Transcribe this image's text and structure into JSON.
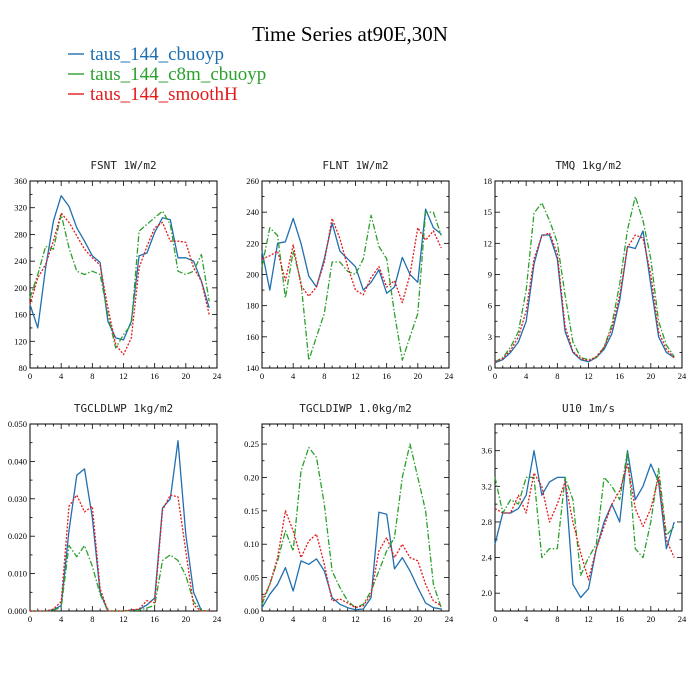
{
  "figure_title": "Time Series at90E,30N",
  "legend": [
    {
      "label": "taus_144_cbuoyp",
      "color": "#1f6fb0",
      "dash": "solid"
    },
    {
      "label": "taus_144_c8m_cbuoyp",
      "color": "#2ca02c",
      "dash": "dashdot"
    },
    {
      "label": "taus_144_smoothH",
      "color": "#e41a1c",
      "dash": "dot"
    }
  ],
  "chart_data": [
    {
      "type": "line",
      "title": "FSNT  1W/m2",
      "xlim": [
        0,
        24
      ],
      "xticks": [
        0,
        4,
        8,
        12,
        16,
        20,
        24
      ],
      "ylim": [
        80,
        360
      ],
      "yticks": [
        80,
        120,
        160,
        200,
        240,
        280,
        320,
        360
      ],
      "ytick_labels": [
        "80",
        "120",
        "160",
        "200",
        "240",
        "280",
        "320",
        "360"
      ],
      "x": [
        0,
        1,
        2,
        3,
        4,
        5,
        6,
        7,
        8,
        9,
        10,
        11,
        12,
        13,
        14,
        15,
        16,
        17,
        18,
        19,
        20,
        21,
        22,
        23
      ],
      "series": [
        {
          "name": "taus_144_cbuoyp",
          "values": [
            175,
            140,
            230,
            300,
            338,
            322,
            290,
            270,
            248,
            238,
            150,
            125,
            122,
            150,
            248,
            252,
            283,
            305,
            302,
            245,
            245,
            240,
            210,
            170
          ]
        },
        {
          "name": "taus_144_c8m_cbuoyp",
          "values": [
            185,
            220,
            262,
            258,
            310,
            260,
            225,
            220,
            225,
            220,
            160,
            110,
            130,
            145,
            285,
            295,
            305,
            315,
            295,
            225,
            220,
            225,
            250,
            180
          ]
        },
        {
          "name": "taus_144_smoothH",
          "values": [
            175,
            215,
            235,
            270,
            312,
            298,
            278,
            258,
            245,
            234,
            170,
            115,
            100,
            125,
            230,
            262,
            290,
            298,
            270,
            270,
            268,
            230,
            210,
            160
          ]
        }
      ]
    },
    {
      "type": "line",
      "title": "FLNT  1W/m2",
      "xlim": [
        0,
        24
      ],
      "xticks": [
        0,
        4,
        8,
        12,
        16,
        20,
        24
      ],
      "ylim": [
        140,
        260
      ],
      "yticks": [
        140,
        160,
        180,
        200,
        220,
        240,
        260
      ],
      "ytick_labels": [
        "140",
        "160",
        "180",
        "200",
        "220",
        "240",
        "260"
      ],
      "x": [
        0,
        1,
        2,
        3,
        4,
        5,
        6,
        7,
        8,
        9,
        10,
        11,
        12,
        13,
        14,
        15,
        16,
        17,
        18,
        19,
        20,
        21,
        22,
        23
      ],
      "series": [
        {
          "name": "taus_144_cbuoyp",
          "values": [
            215,
            190,
            220,
            221,
            236,
            220,
            199,
            192,
            210,
            233,
            215,
            210,
            205,
            190,
            195,
            203,
            188,
            192,
            211,
            200,
            195,
            242,
            230,
            226
          ]
        },
        {
          "name": "taus_144_c8m_cbuoyp",
          "values": [
            205,
            230,
            225,
            185,
            215,
            195,
            145,
            160,
            175,
            208,
            208,
            202,
            200,
            210,
            238,
            218,
            210,
            175,
            145,
            160,
            175,
            240,
            240,
            225
          ]
        },
        {
          "name": "taus_144_smoothH",
          "values": [
            210,
            212,
            215,
            196,
            219,
            193,
            186,
            192,
            208,
            236,
            223,
            205,
            190,
            187,
            198,
            205,
            192,
            196,
            182,
            200,
            230,
            222,
            228,
            217
          ]
        }
      ]
    },
    {
      "type": "line",
      "title": "TMQ  1kg/m2",
      "xlim": [
        0,
        24
      ],
      "xticks": [
        0,
        4,
        8,
        12,
        16,
        20,
        24
      ],
      "ylim": [
        0,
        18
      ],
      "yticks": [
        0,
        3,
        6,
        9,
        12,
        15,
        18
      ],
      "ytick_labels": [
        "0",
        "3",
        "6",
        "9",
        "12",
        "15",
        "18"
      ],
      "x": [
        0,
        1,
        2,
        3,
        4,
        5,
        6,
        7,
        8,
        9,
        10,
        11,
        12,
        13,
        14,
        15,
        16,
        17,
        18,
        19,
        20,
        21,
        22,
        23
      ],
      "series": [
        {
          "name": "taus_144_cbuoyp",
          "values": [
            0.5,
            0.8,
            1.5,
            2.5,
            4.5,
            10,
            12.8,
            12.8,
            10.5,
            3.5,
            1.5,
            0.8,
            0.6,
            1,
            1.8,
            3.3,
            6.5,
            11.7,
            11.5,
            13.2,
            8,
            3,
            1.5,
            1
          ]
        },
        {
          "name": "taus_144_c8m_cbuoyp",
          "values": [
            0.6,
            1,
            2,
            3.5,
            7.5,
            14.9,
            15.9,
            14.2,
            12.1,
            7,
            2.5,
            1,
            0.8,
            1,
            2,
            4.2,
            8.1,
            13.3,
            16.5,
            14.2,
            10.5,
            4.5,
            2.2,
            1.1
          ]
        },
        {
          "name": "taus_144_smoothH",
          "values": [
            0.6,
            0.9,
            1.7,
            3,
            5.5,
            10.5,
            12.7,
            13,
            11,
            4,
            1.6,
            0.9,
            0.7,
            1.1,
            2,
            3.8,
            7,
            11.6,
            12.8,
            12.5,
            9,
            3.5,
            1.8,
            1
          ]
        }
      ]
    },
    {
      "type": "line",
      "title": "TGCLDLWP  1kg/m2",
      "xlim": [
        0,
        24
      ],
      "xticks": [
        0,
        4,
        8,
        12,
        16,
        20,
        24
      ],
      "ylim": [
        0,
        0.05
      ],
      "yticks": [
        0,
        0.01,
        0.02,
        0.03,
        0.04,
        0.05
      ],
      "ytick_labels": [
        "0.000",
        "0.010",
        "0.020",
        "0.030",
        "0.040",
        "0.050"
      ],
      "x": [
        0,
        1,
        2,
        3,
        4,
        5,
        6,
        7,
        8,
        9,
        10,
        11,
        12,
        13,
        14,
        15,
        16,
        17,
        18,
        19,
        20,
        21,
        22,
        23
      ],
      "series": [
        {
          "name": "taus_144_cbuoyp",
          "values": [
            0,
            0,
            0,
            0.0003,
            0.0015,
            0.0215,
            0.0363,
            0.038,
            0.025,
            0.005,
            0,
            0,
            0,
            0.0002,
            0.0004,
            0.0016,
            0.0035,
            0.0275,
            0.03,
            0.0455,
            0.0205,
            0.005,
            0.0001,
            0
          ]
        },
        {
          "name": "taus_144_c8m_cbuoyp",
          "values": [
            0,
            0,
            0,
            0.0002,
            0.001,
            0.0175,
            0.0145,
            0.0175,
            0.012,
            0.0045,
            0,
            0,
            0,
            0.0001,
            0.0002,
            0.0008,
            0.0015,
            0.0135,
            0.015,
            0.0135,
            0.0095,
            0.0025,
            0.0001,
            0
          ]
        },
        {
          "name": "taus_144_smoothH",
          "values": [
            0,
            0,
            0,
            0.0005,
            0.0025,
            0.028,
            0.031,
            0.0265,
            0.028,
            0.006,
            0,
            0,
            0,
            0.0003,
            0.0005,
            0.0028,
            0.0022,
            0.027,
            0.031,
            0.0305,
            0.016,
            0.0015,
            0,
            0
          ]
        }
      ]
    },
    {
      "type": "line",
      "title": "TGCLDIWP  1.0kg/m2",
      "xlim": [
        0,
        24
      ],
      "xticks": [
        0,
        4,
        8,
        12,
        16,
        20,
        24
      ],
      "ylim": [
        0,
        0.28
      ],
      "yticks": [
        0,
        0.05,
        0.1,
        0.15,
        0.2,
        0.25
      ],
      "ytick_labels": [
        "0.00",
        "0.05",
        "0.10",
        "0.15",
        "0.20",
        "0.25"
      ],
      "x": [
        0,
        1,
        2,
        3,
        4,
        5,
        6,
        7,
        8,
        9,
        10,
        11,
        12,
        13,
        14,
        15,
        16,
        17,
        18,
        19,
        20,
        21,
        22,
        23
      ],
      "series": [
        {
          "name": "taus_144_cbuoyp",
          "values": [
            0.005,
            0.025,
            0.04,
            0.065,
            0.03,
            0.075,
            0.07,
            0.078,
            0.06,
            0.02,
            0.01,
            0.005,
            0.002,
            0.003,
            0.02,
            0.148,
            0.145,
            0.063,
            0.08,
            0.06,
            0.035,
            0.012,
            0.005,
            0.003
          ]
        },
        {
          "name": "taus_144_c8m_cbuoyp",
          "values": [
            0.01,
            0.04,
            0.075,
            0.12,
            0.09,
            0.21,
            0.245,
            0.23,
            0.16,
            0.06,
            0.035,
            0.015,
            0.005,
            0.01,
            0.03,
            0.06,
            0.09,
            0.11,
            0.2,
            0.25,
            0.2,
            0.15,
            0.04,
            0.005
          ]
        },
        {
          "name": "taus_144_smoothH",
          "values": [
            0.015,
            0.04,
            0.08,
            0.15,
            0.12,
            0.08,
            0.105,
            0.115,
            0.07,
            0.015,
            0.018,
            0.012,
            0.005,
            0.008,
            0.025,
            0.09,
            0.11,
            0.08,
            0.1,
            0.08,
            0.075,
            0.04,
            0.015,
            0.008
          ]
        }
      ]
    },
    {
      "type": "line",
      "title": "U10  1m/s",
      "xlim": [
        0,
        24
      ],
      "xticks": [
        0,
        4,
        8,
        12,
        16,
        20,
        24
      ],
      "ylim": [
        1.8,
        3.9
      ],
      "yticks": [
        2.0,
        2.4,
        2.8,
        3.2,
        3.6
      ],
      "ytick_labels": [
        "2.0",
        "2.4",
        "2.8",
        "3.2",
        "3.6"
      ],
      "x": [
        0,
        1,
        2,
        3,
        4,
        5,
        6,
        7,
        8,
        9,
        10,
        11,
        12,
        13,
        14,
        15,
        16,
        17,
        18,
        19,
        20,
        21,
        22,
        23
      ],
      "series": [
        {
          "name": "taus_144_cbuoyp",
          "values": [
            2.55,
            2.9,
            2.9,
            2.95,
            3.1,
            3.6,
            3.1,
            3.25,
            3.3,
            3.3,
            2.1,
            1.95,
            2.05,
            2.5,
            2.8,
            3,
            2.8,
            3.6,
            3.05,
            3.2,
            3.45,
            3.25,
            2.5,
            2.8
          ]
        },
        {
          "name": "taus_144_c8m_cbuoyp",
          "values": [
            3.3,
            2.9,
            3.05,
            3,
            3.3,
            3.3,
            2.4,
            2.5,
            2.5,
            3.3,
            3.05,
            2.2,
            2.4,
            2.55,
            3.3,
            3.2,
            3.05,
            3.6,
            2.5,
            2.4,
            2.8,
            3.4,
            2.65,
            2.75
          ]
        },
        {
          "name": "taus_144_smoothH",
          "values": [
            2.95,
            2.9,
            2.9,
            3.1,
            2.9,
            3.35,
            3.2,
            2.8,
            3,
            3.25,
            2.8,
            2.45,
            2.15,
            2.5,
            2.75,
            3,
            3.15,
            3.45,
            2.95,
            2.75,
            2.95,
            3.3,
            2.6,
            2.4
          ]
        }
      ]
    }
  ]
}
